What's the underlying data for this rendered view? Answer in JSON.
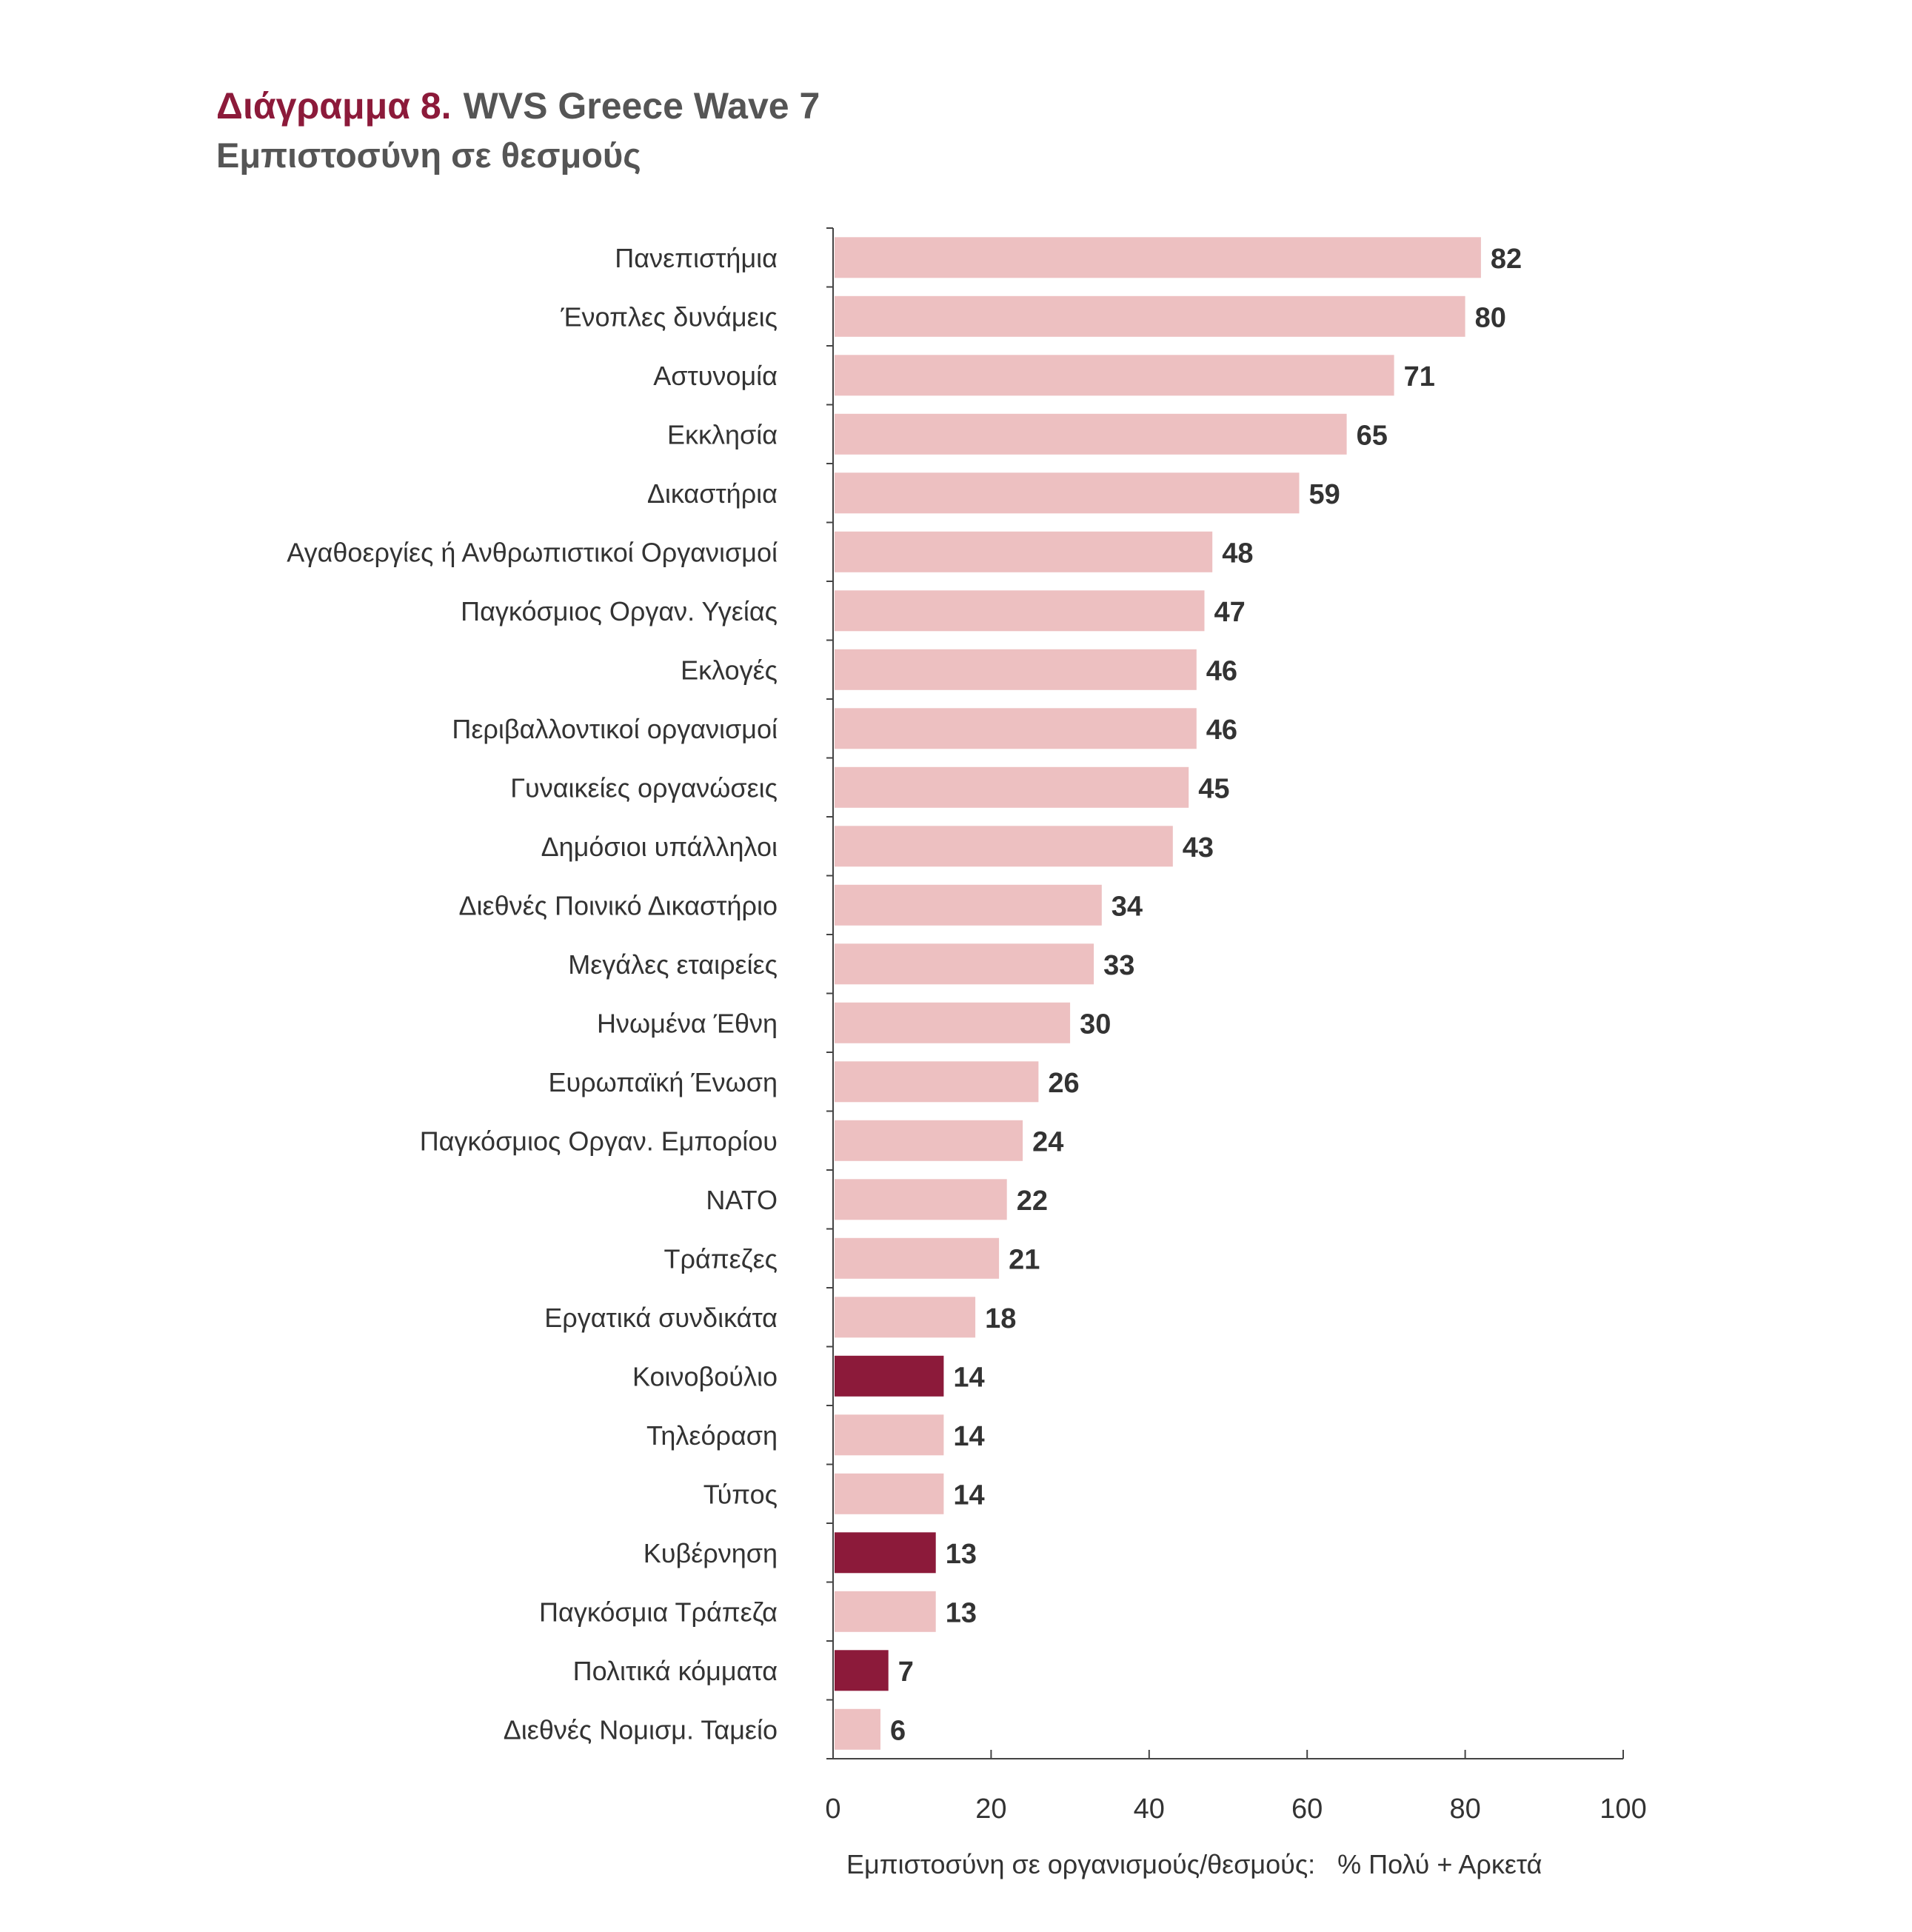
{
  "chart_data": {
    "type": "bar",
    "orientation": "horizontal",
    "title_prefix": "Διάγραμμα 8.",
    "title": "WVS Greece Wave 7",
    "subtitle": "Εμπιστοσύνη σε θεσμούς",
    "xlabel": "Εμπιστοσύνη σε οργανισμούς/θεσμούς:   % Πολύ + Αρκετά",
    "xlim": [
      0,
      100
    ],
    "xticks": [
      0,
      20,
      40,
      60,
      80,
      100
    ],
    "grid": false,
    "categories": [
      "Πανεπιστήμια",
      "Ένοπλες δυνάμεις",
      "Αστυνομία",
      "Εκκλησία",
      "Δικαστήρια",
      "Αγαθοεργίες ή Ανθρωπιστικοί Οργανισμοί",
      "Παγκόσμιος Οργαν. Υγείας",
      "Εκλογές",
      "Περιβαλλοντικοί οργανισμοί",
      "Γυναικείες οργανώσεις",
      "Δημόσιοι υπάλληλοι",
      "Διεθνές Ποινικό Δικαστήριο",
      "Μεγάλες εταιρείες",
      "Ηνωμένα Έθνη",
      "Ευρωπαϊκή Ένωση",
      "Παγκόσμιος Οργαν. Εμπορίου",
      "ΝΑΤΟ",
      "Τράπεζες",
      "Εργατικά συνδικάτα",
      "Κοινοβούλιο",
      "Τηλεόραση",
      "Τύπος",
      "Κυβέρνηση",
      "Παγκόσμια Τράπεζα",
      "Πολιτικά κόμματα",
      "Διεθνές Νομισμ. Ταμείο"
    ],
    "values": [
      82,
      80,
      71,
      65,
      59,
      48,
      47,
      46,
      46,
      45,
      43,
      34,
      33,
      30,
      26,
      24,
      22,
      21,
      18,
      14,
      14,
      14,
      13,
      13,
      7,
      6
    ],
    "highlighted": [
      "Κοινοβούλιο",
      "Κυβέρνηση",
      "Πολιτικά κόμματα"
    ],
    "colors": {
      "bar": "#EDC0C1",
      "highlight": "#8C1A3A",
      "title_accent": "#8C1A3A",
      "title_text": "#555555",
      "value_label": "#333333",
      "axis": "#444444"
    }
  }
}
